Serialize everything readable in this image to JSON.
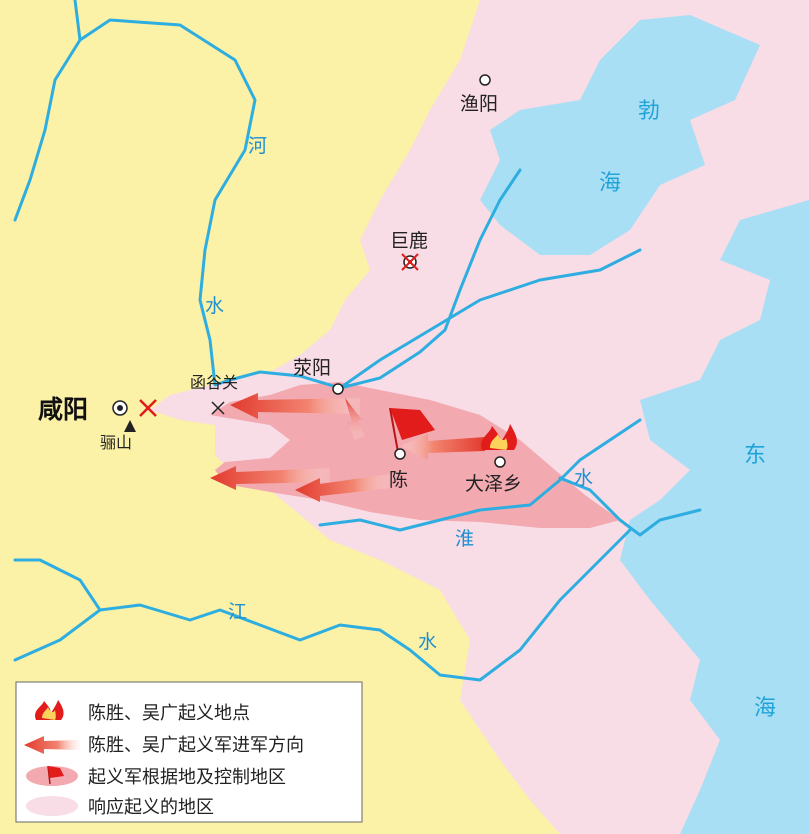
{
  "places": {
    "xianyang": "咸阳",
    "lishan": "骊山",
    "hanguguan": "函谷关",
    "xingyang": "荥阳",
    "julu": "巨鹿",
    "yuyang": "渔阳",
    "chen": "陈",
    "dazexiang": "大泽乡"
  },
  "rivers": {
    "he": [
      "河",
      "水"
    ],
    "huai": [
      "淮",
      "水"
    ],
    "jiang": [
      "江",
      "水"
    ]
  },
  "seas": {
    "bohai": [
      "勃",
      "海"
    ],
    "donghai": [
      "东",
      "海"
    ]
  },
  "legend": {
    "items": [
      {
        "label": "陈胜、吴广起义地点",
        "icon": "fire-icon"
      },
      {
        "label": "陈胜、吴广起义军进军方向",
        "icon": "arrow-icon"
      },
      {
        "label": "起义军根据地及控制地区",
        "icon": "flag-area-icon"
      },
      {
        "label": "响应起义的地区",
        "icon": "pink-area-icon"
      }
    ]
  },
  "colors": {
    "land": "#fbf1a7",
    "sea": "#a9dff5",
    "river": "#2eaee0",
    "response_area": "#f8dce6",
    "base_area": "#f2a9b0",
    "arrow": "#e8413a",
    "flag": "#e21b1b"
  }
}
